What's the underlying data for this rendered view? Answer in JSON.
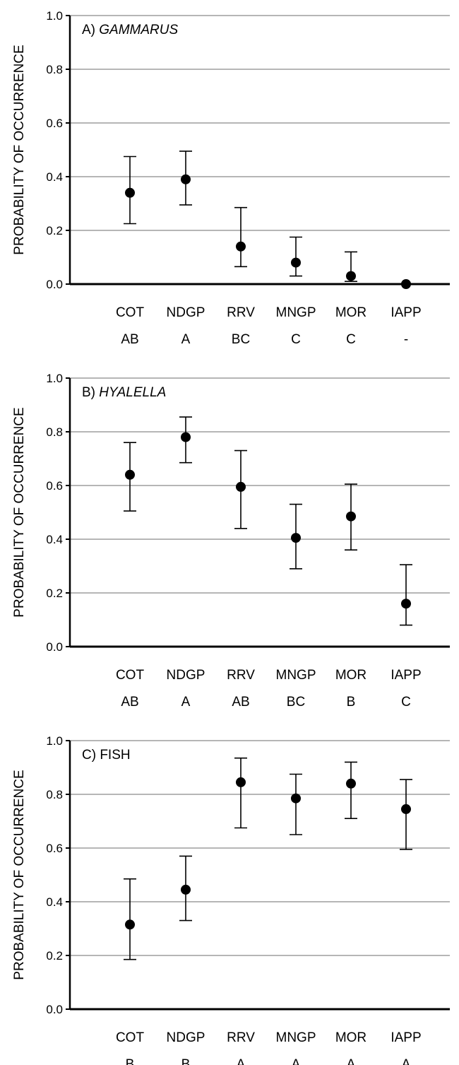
{
  "chart_data": [
    {
      "type": "scatter",
      "panel_label": "A)",
      "title": "GAMMARUS",
      "title_italic": true,
      "ylabel": "PROBABILITY OF OCCURRENCE",
      "ylim": [
        0,
        1.0
      ],
      "yticks": [
        "0.0",
        "0.2",
        "0.4",
        "0.6",
        "0.8",
        "1.0"
      ],
      "grid": true,
      "categories": [
        "COT",
        "NDGP",
        "RRV",
        "MNGP",
        "MOR",
        "IAPP"
      ],
      "group_letters": [
        "AB",
        "A",
        "BC",
        "C",
        "C",
        "-"
      ],
      "values": [
        0.34,
        0.39,
        0.14,
        0.08,
        0.03,
        0.0
      ],
      "lower": [
        0.225,
        0.295,
        0.065,
        0.03,
        0.01,
        0.0
      ],
      "upper": [
        0.475,
        0.495,
        0.285,
        0.175,
        0.12,
        0.0
      ]
    },
    {
      "type": "scatter",
      "panel_label": "B)",
      "title": "HYALELLA",
      "title_italic": true,
      "ylabel": "PROBABILITY OF OCCURRENCE",
      "ylim": [
        0,
        1.0
      ],
      "yticks": [
        "0.0",
        "0.2",
        "0.4",
        "0.6",
        "0.8",
        "1.0"
      ],
      "grid": true,
      "categories": [
        "COT",
        "NDGP",
        "RRV",
        "MNGP",
        "MOR",
        "IAPP"
      ],
      "group_letters": [
        "AB",
        "A",
        "AB",
        "BC",
        "B",
        "C"
      ],
      "values": [
        0.64,
        0.78,
        0.595,
        0.405,
        0.485,
        0.16
      ],
      "lower": [
        0.505,
        0.685,
        0.44,
        0.29,
        0.36,
        0.08
      ],
      "upper": [
        0.76,
        0.855,
        0.73,
        0.53,
        0.605,
        0.305
      ]
    },
    {
      "type": "scatter",
      "panel_label": "C)",
      "title": "FISH",
      "title_italic": false,
      "ylabel": "PROBABILITY OF OCCURRENCE",
      "ylim": [
        0,
        1.0
      ],
      "yticks": [
        "0.0",
        "0.2",
        "0.4",
        "0.6",
        "0.8",
        "1.0"
      ],
      "grid": true,
      "categories": [
        "COT",
        "NDGP",
        "RRV",
        "MNGP",
        "MOR",
        "IAPP"
      ],
      "group_letters": [
        "B",
        "B",
        "A",
        "A",
        "A",
        "A"
      ],
      "values": [
        0.315,
        0.445,
        0.845,
        0.785,
        0.84,
        0.745
      ],
      "lower": [
        0.185,
        0.33,
        0.675,
        0.65,
        0.71,
        0.595
      ],
      "upper": [
        0.485,
        0.57,
        0.935,
        0.875,
        0.92,
        0.855
      ]
    }
  ]
}
